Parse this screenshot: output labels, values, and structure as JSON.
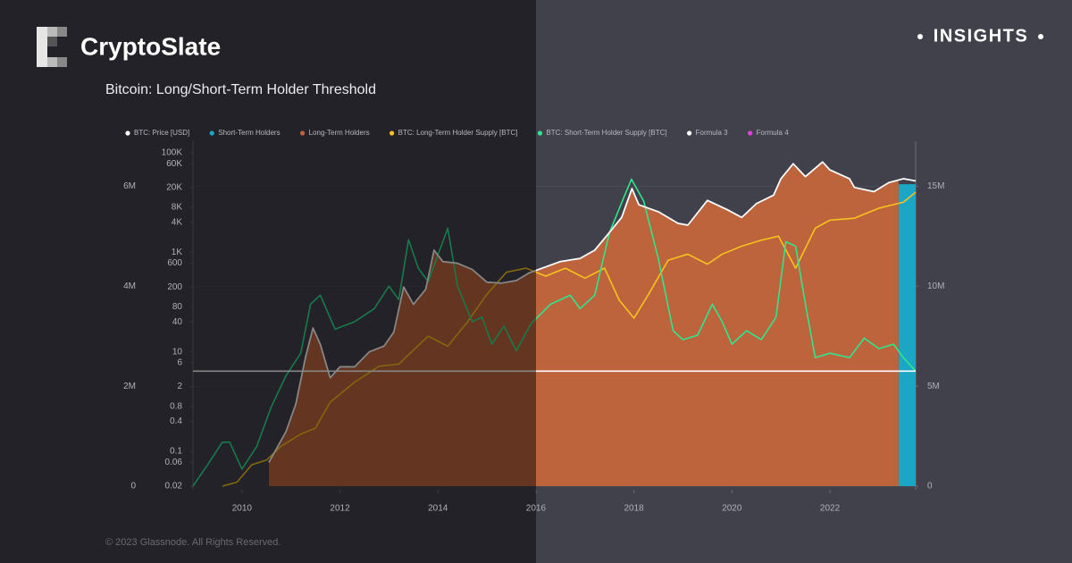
{
  "brand": "CryptoSlate",
  "insights": "INSIGHTS",
  "footer": "© 2023 Glassnode. All Rights Reserved.",
  "chart_data": {
    "type": "line",
    "title": "Bitcoin: Long/Short-Term Holder Threshold",
    "xlim": [
      2009,
      2023.75
    ],
    "xticks": [
      2010,
      2012,
      2014,
      2016,
      2018,
      2020,
      2022
    ],
    "ylim": [
      0,
      6900000
    ],
    "yticks": [
      0,
      {
        "value": 2000000,
        "label": "2M"
      },
      {
        "value": 4000000,
        "label": "4M"
      },
      {
        "value": 6000000,
        "label": "6M"
      }
    ],
    "y2lim": [
      0,
      17250000
    ],
    "y2ticks": [
      0,
      {
        "value": 5000000,
        "label": "5M"
      },
      {
        "value": 10000000,
        "label": "10M"
      },
      {
        "value": 15000000,
        "label": "15M"
      }
    ],
    "y3lim": [
      0.02,
      170000
    ],
    "y3log": true,
    "y3ticks": [
      {
        "value": 100000,
        "label": "100K"
      },
      {
        "value": 60000,
        "label": "60K"
      },
      {
        "value": 20000,
        "label": "20K"
      },
      {
        "value": 8000,
        "label": "8K"
      },
      {
        "value": 4000,
        "label": "4K"
      },
      {
        "value": 1000,
        "label": "1K"
      },
      600,
      200,
      80,
      40,
      10,
      6,
      2,
      0.8,
      0.4,
      0.1,
      0.06,
      0.02
    ],
    "series": [
      {
        "name": "BTC: Price [USD]",
        "type": "line",
        "axis": "y3",
        "color": "#ffffff",
        "x": [
          2010.55,
          2010.9,
          2011.1,
          2011.3,
          2011.45,
          2011.6,
          2011.8,
          2012.0,
          2012.3,
          2012.6,
          2012.9,
          2013.1,
          2013.3,
          2013.5,
          2013.75,
          2013.92,
          2014.1,
          2014.4,
          2014.7,
          2015.0,
          2015.3,
          2015.6,
          2015.85,
          2016.0,
          2016.5,
          2016.9,
          2017.2,
          2017.5,
          2017.75,
          2017.96,
          2018.1,
          2018.5,
          2018.9,
          2019.1,
          2019.5,
          2019.9,
          2020.2,
          2020.5,
          2020.85,
          2021.0,
          2021.25,
          2021.5,
          2021.85,
          2022.0,
          2022.4,
          2022.5,
          2022.9,
          2023.2,
          2023.5,
          2023.75
        ],
        "values": [
          0.06,
          0.25,
          0.9,
          8,
          30,
          14,
          3,
          5,
          5,
          10,
          13,
          25,
          200,
          90,
          180,
          1100,
          650,
          600,
          450,
          250,
          240,
          270,
          380,
          430,
          650,
          750,
          1100,
          2500,
          5000,
          19000,
          9000,
          6500,
          3800,
          3500,
          11000,
          7200,
          5000,
          9500,
          14000,
          30000,
          60000,
          33000,
          65000,
          45000,
          30000,
          20000,
          16500,
          25000,
          30000,
          27000
        ]
      },
      {
        "name": "Short-Term Holders",
        "type": "area",
        "axis": "y2",
        "color": "#1ba6c6",
        "x": [
          2023.4,
          2023.75
        ],
        "values": [
          15100000,
          15100000
        ]
      },
      {
        "name": "Long-Term Holders",
        "type": "area",
        "axis": "y3",
        "color": "#bd643d",
        "x": [
          2010.55,
          2010.9,
          2011.1,
          2011.3,
          2011.45,
          2011.6,
          2011.8,
          2012.0,
          2012.3,
          2012.6,
          2012.9,
          2013.1,
          2013.3,
          2013.5,
          2013.75,
          2013.92,
          2014.1,
          2014.4,
          2014.7,
          2015.0,
          2015.3,
          2015.6,
          2015.85,
          2016.0,
          2016.5,
          2016.9,
          2017.2,
          2017.5,
          2017.75,
          2017.96,
          2018.1,
          2018.5,
          2018.9,
          2019.1,
          2019.5,
          2019.9,
          2020.2,
          2020.5,
          2020.85,
          2021.0,
          2021.25,
          2021.5,
          2021.85,
          2022.0,
          2022.4,
          2022.5,
          2022.9,
          2023.2,
          2023.4
        ],
        "values": [
          0.06,
          0.25,
          0.9,
          8,
          30,
          14,
          3,
          5,
          5,
          10,
          13,
          25,
          200,
          90,
          180,
          1100,
          650,
          600,
          450,
          250,
          240,
          270,
          380,
          430,
          650,
          750,
          1100,
          2500,
          5000,
          19000,
          9000,
          6500,
          3800,
          3500,
          11000,
          7200,
          5000,
          9500,
          14000,
          30000,
          60000,
          33000,
          65000,
          45000,
          30000,
          20000,
          16500,
          25000,
          28000
        ]
      },
      {
        "name": "BTC: Long-Term Holder Supply [BTC]",
        "type": "line",
        "axis": "y2",
        "color": "#f7c21c",
        "x": [
          2009.6,
          2009.9,
          2010.2,
          2010.5,
          2010.8,
          2011.2,
          2011.5,
          2011.8,
          2012.3,
          2012.8,
          2013.2,
          2013.5,
          2013.8,
          2014.2,
          2014.6,
          2015.0,
          2015.4,
          2015.8,
          2016.2,
          2016.6,
          2017.0,
          2017.4,
          2017.7,
          2018.0,
          2018.3,
          2018.7,
          2019.1,
          2019.5,
          2019.8,
          2020.2,
          2020.6,
          2020.95,
          2021.3,
          2021.7,
          2022.0,
          2022.5,
          2023.0,
          2023.5,
          2023.75
        ],
        "values": [
          0,
          200000,
          1070000,
          1300000,
          2000000,
          2600000,
          2900000,
          4200000,
          5200000,
          6000000,
          6100000,
          6800000,
          7500000,
          7000000,
          8200000,
          9600000,
          10700000,
          10900000,
          10500000,
          10900000,
          10400000,
          10900000,
          9300000,
          8400000,
          9600000,
          11300000,
          11600000,
          11100000,
          11600000,
          12000000,
          12300000,
          12500000,
          10900000,
          12900000,
          13300000,
          13400000,
          13900000,
          14200000,
          14700000
        ]
      },
      {
        "name": "BTC: Short-Term Holder Supply [BTC]",
        "type": "line",
        "axis": "y",
        "color": "#2ee68c",
        "x": [
          2009.0,
          2009.3,
          2009.6,
          2009.75,
          2010.0,
          2010.3,
          2010.6,
          2010.9,
          2011.2,
          2011.4,
          2011.6,
          2011.9,
          2012.3,
          2012.7,
          2013.0,
          2013.2,
          2013.4,
          2013.6,
          2013.8,
          2014.2,
          2014.4,
          2014.7,
          2014.9,
          2015.1,
          2015.35,
          2015.6,
          2015.9,
          2016.3,
          2016.7,
          2016.9,
          2017.2,
          2017.5,
          2017.8,
          2017.95,
          2018.2,
          2018.5,
          2018.8,
          2019.0,
          2019.3,
          2019.6,
          2019.8,
          2020.0,
          2020.3,
          2020.6,
          2020.9,
          2021.1,
          2021.3,
          2021.5,
          2021.7,
          2022.0,
          2022.4,
          2022.7,
          2023.0,
          2023.3,
          2023.5,
          2023.75
        ],
        "values": [
          0,
          430000,
          880000,
          880000,
          340000,
          790000,
          1590000,
          2210000,
          2660000,
          3640000,
          3820000,
          3140000,
          3290000,
          3550000,
          4000000,
          3730000,
          4930000,
          4360000,
          4090000,
          5160000,
          4000000,
          3290000,
          3380000,
          2840000,
          3200000,
          2710000,
          3250000,
          3640000,
          3820000,
          3550000,
          3820000,
          5070000,
          5790000,
          6140000,
          5700000,
          4540000,
          3110000,
          2930000,
          3020000,
          3640000,
          3290000,
          2840000,
          3110000,
          2930000,
          3380000,
          4890000,
          4800000,
          3640000,
          2570000,
          2660000,
          2570000,
          2960000,
          2750000,
          2840000,
          2570000,
          2300000
        ]
      },
      {
        "name": "Formula 3",
        "type": "line",
        "axis": "y",
        "color": "#ffffff",
        "x": [
          2009.0,
          2023.75
        ],
        "values": [
          2300000,
          2300000
        ]
      },
      {
        "name": "Formula 4",
        "type": "line",
        "axis": "y",
        "color": "#e040e0",
        "x": [],
        "values": []
      }
    ]
  }
}
